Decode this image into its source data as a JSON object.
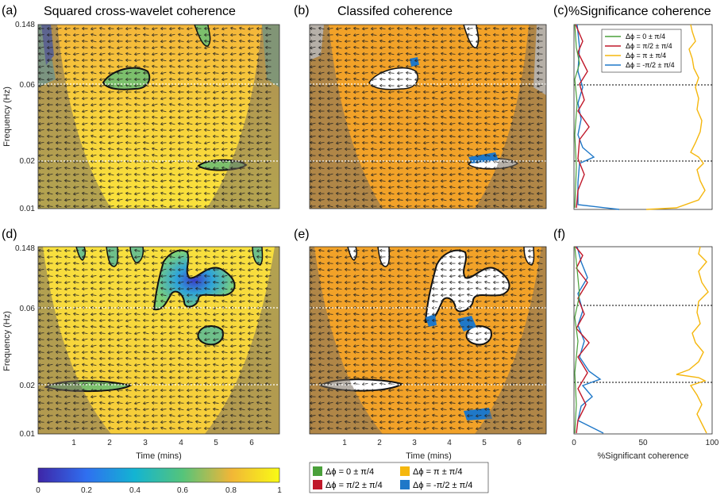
{
  "colors": {
    "yellow": "#f7d83a",
    "orange": "#f2a228",
    "coi_shade": "#8a8166",
    "green_phase": "#4aa03a",
    "red_phase": "#c0182a",
    "yellow_phase": "#f5b70e",
    "blue_phase": "#1f78c8",
    "dotted_line": "#ffffff"
  },
  "icons": [
    "phase-arrow-icon"
  ],
  "panels": {
    "a": {
      "label": "(a)",
      "title": "Squared cross-wavelet coherence"
    },
    "b": {
      "label": "(b)",
      "title": "Classifed coherence"
    },
    "c": {
      "label": "(c)",
      "title": "%Significance coherence"
    },
    "d": {
      "label": "(d)"
    },
    "e": {
      "label": "(e)"
    },
    "f": {
      "label": "(f)"
    }
  },
  "axes": {
    "ylabel": "Frequency (Hz)",
    "xlabel": "Time (mins)",
    "xlabel_pct": "%Significant coherence",
    "yticks": [
      "0.148",
      "0.06",
      "0.02",
      "0.01"
    ],
    "xticks": [
      "1",
      "2",
      "3",
      "4",
      "5",
      "6"
    ],
    "pct_ticks": [
      "0",
      "50",
      "100"
    ]
  },
  "colorbar": {
    "ticks": [
      "0",
      "0.2",
      "0.4",
      "0.6",
      "0.8",
      "1"
    ],
    "range": [
      0,
      1
    ]
  },
  "legend_c": [
    {
      "label": "Δϕ = 0 ± π/4",
      "color": "#4aa03a"
    },
    {
      "label": "Δϕ = π/2 ± π/4",
      "color": "#c0182a"
    },
    {
      "label": "Δϕ = π ± π/4",
      "color": "#f5b70e"
    },
    {
      "label": "Δϕ = -π/2 ± π/4",
      "color": "#1f78c8"
    }
  ],
  "legend_bottom": [
    {
      "label": "Δϕ = 0 ± π/4",
      "color": "#4aa03a"
    },
    {
      "label": "Δϕ = π ± π/4",
      "color": "#f5b70e"
    },
    {
      "label": "Δϕ = π/2 ± π/4",
      "color": "#c0182a"
    },
    {
      "label": "Δϕ = -π/2 ± π/4",
      "color": "#1f78c8"
    }
  ],
  "chart_data": [
    {
      "type": "heatmap",
      "panel": "a",
      "title": "Squared cross-wavelet coherence",
      "xlabel": "",
      "ylabel": "Frequency (Hz)",
      "xlim": [
        0,
        6.8
      ],
      "ylim_hz": [
        0.01,
        0.148
      ],
      "yscale": "log",
      "reference_lines_hz": [
        0.06,
        0.02
      ],
      "colorbar_range": [
        0,
        1
      ]
    },
    {
      "type": "heatmap",
      "panel": "b",
      "title": "Classifed coherence",
      "categories": [
        "Δϕ = 0 ± π/4",
        "Δϕ = π/2 ± π/4",
        "Δϕ = π ± π/4",
        "Δϕ = -π/2 ± π/4"
      ],
      "dominant_category": "Δϕ = π ± π/4",
      "reference_lines_hz": [
        0.06,
        0.02
      ]
    },
    {
      "type": "line",
      "panel": "c",
      "title": "%Significance coherence",
      "xlim": [
        0,
        100
      ],
      "ylim_hz": [
        0.01,
        0.148
      ],
      "reference_lines_hz": [
        0.06,
        0.02
      ],
      "series": [
        {
          "name": "Δϕ = π ± π/4",
          "approx_range": [
            48,
            98
          ]
        },
        {
          "name": "Δϕ = -π/2 ± π/4",
          "approx_range": [
            0,
            15
          ]
        },
        {
          "name": "Δϕ = π/2 ± π/4",
          "approx_range": [
            0,
            10
          ]
        },
        {
          "name": "Δϕ = 0 ± π/4",
          "approx_range": [
            0,
            3
          ]
        }
      ]
    },
    {
      "type": "heatmap",
      "panel": "d",
      "xlabel": "Time (mins)",
      "ylabel": "Frequency (Hz)",
      "xlim": [
        0,
        6.8
      ],
      "ylim_hz": [
        0.01,
        0.148
      ],
      "reference_lines_hz": [
        0.06,
        0.02
      ],
      "colorbar_range": [
        0,
        1
      ]
    },
    {
      "type": "heatmap",
      "panel": "e",
      "xlabel": "Time (mins)",
      "categories": [
        "Δϕ = 0 ± π/4",
        "Δϕ = π/2 ± π/4",
        "Δϕ = π ± π/4",
        "Δϕ = -π/2 ± π/4"
      ],
      "dominant_category": "Δϕ = π ± π/4",
      "reference_lines_hz": [
        0.06,
        0.02
      ]
    },
    {
      "type": "line",
      "panel": "f",
      "xlabel": "%Significant coherence",
      "xlim": [
        0,
        100
      ],
      "reference_lines_hz": [
        0.06,
        0.02
      ],
      "series": [
        {
          "name": "Δϕ = π ± π/4",
          "approx_range": [
            70,
            98
          ]
        },
        {
          "name": "Δϕ = -π/2 ± π/4",
          "approx_range": [
            0,
            20
          ]
        },
        {
          "name": "Δϕ = π/2 ± π/4",
          "approx_range": [
            0,
            10
          ]
        },
        {
          "name": "Δϕ = 0 ± π/4",
          "approx_range": [
            0,
            4
          ]
        }
      ]
    }
  ]
}
